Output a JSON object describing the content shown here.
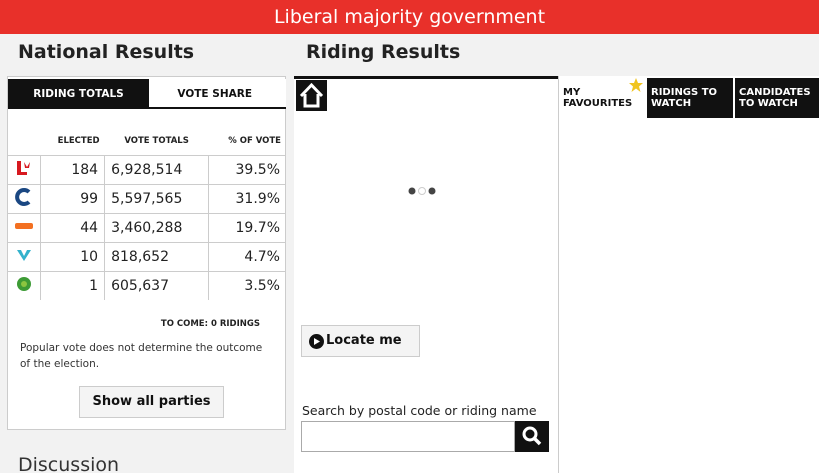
{
  "banner": "Liberal majority government",
  "national": {
    "heading": "National Results",
    "tabs": [
      "RIDING TOTALS",
      "VOTE SHARE"
    ],
    "table": {
      "columns": [
        "ELECTED",
        "VOTE TOTALS",
        "% OF VOTE"
      ],
      "rows": [
        [
          "184",
          "6,928,514",
          "39.5%"
        ],
        [
          "99",
          "5,597,565",
          "31.9%"
        ],
        [
          "44",
          "3,460,288",
          "19.7%"
        ],
        [
          "10",
          "818,652",
          "4.7%"
        ],
        [
          "1",
          "605,637",
          "3.5%"
        ]
      ]
    },
    "to_come": "TO COME: 0 RIDINGS",
    "note": "Popular vote does not determine the outcome of the election.",
    "button": "Show all parties"
  },
  "riding": {
    "heading": "Riding Results",
    "locate": "Locate me",
    "search_label": "Search by postal code or riding name"
  },
  "side_tabs": [
    "MY FAVOURITES",
    "RIDINGS TO WATCH",
    "CANDIDATES TO WATCH"
  ],
  "discussion": "Discussion"
}
